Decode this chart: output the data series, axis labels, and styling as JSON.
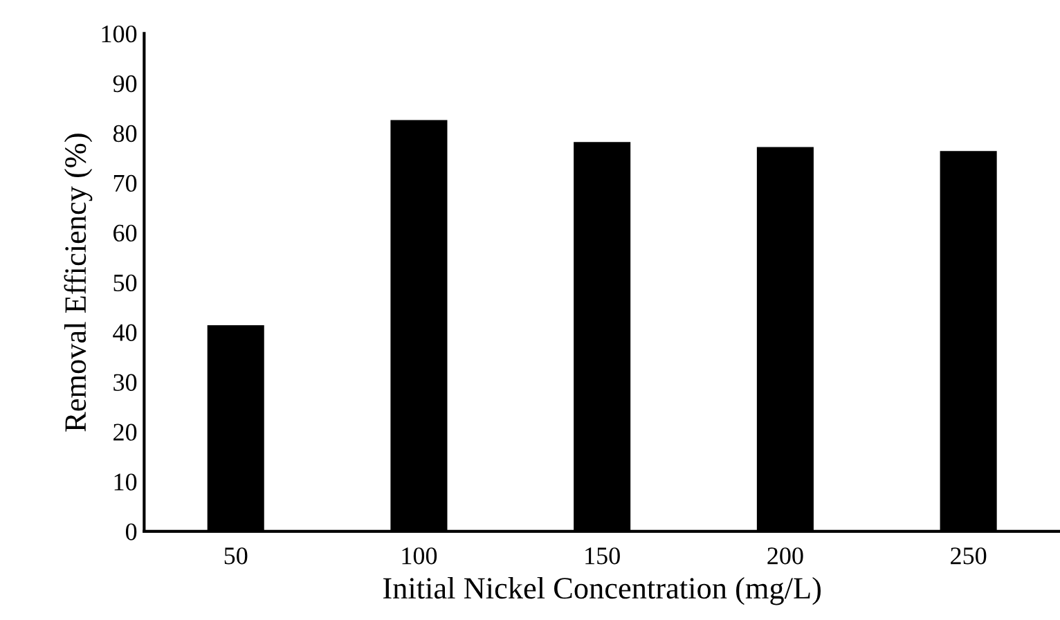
{
  "chart_data": {
    "type": "bar",
    "xlabel": "Initial Nickel Concentration (mg/L)",
    "ylabel": "Removal Efficiency (%)",
    "categories": [
      "50",
      "100",
      "150",
      "200",
      "250"
    ],
    "values": [
      41.4,
      82.6,
      78.2,
      77.2,
      76.4
    ],
    "color": "#000000",
    "ylim": [
      0,
      100
    ],
    "yticks": [
      0,
      10,
      20,
      30,
      40,
      50,
      60,
      70,
      80,
      90,
      100
    ],
    "grid": false,
    "legend": false
  }
}
